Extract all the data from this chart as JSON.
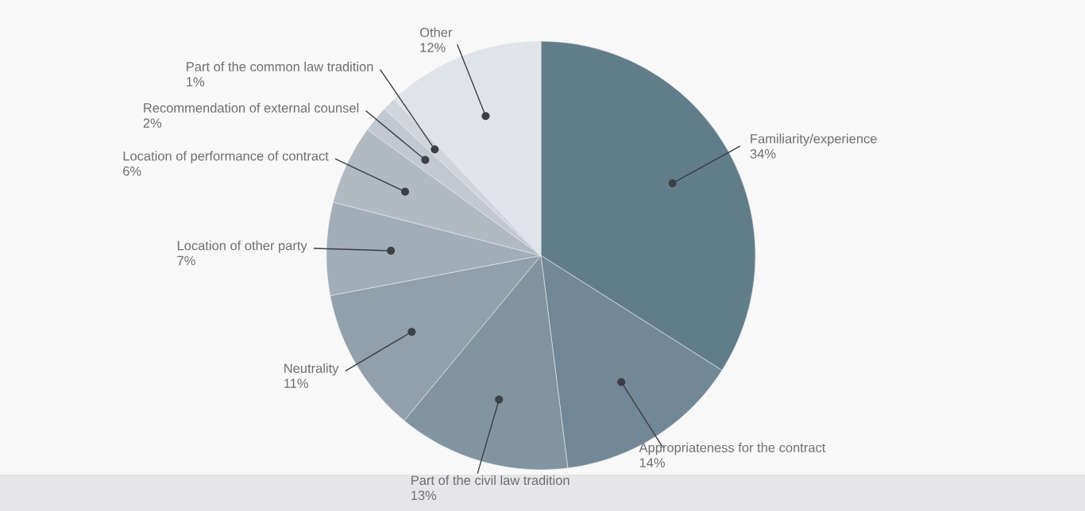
{
  "chart_data": {
    "type": "pie",
    "categories": [
      "Familiarity/experience",
      "Appropriateness for the contract",
      "Part of the civil law tradition",
      "Neutrality",
      "Location of other party",
      "Location of performance of contract",
      "Recommendation of external counsel",
      "Part of the common law tradition",
      "Other"
    ],
    "values": [
      34,
      14,
      13,
      11,
      7,
      6,
      2,
      1,
      12
    ],
    "value_labels": [
      "34%",
      "14%",
      "13%",
      "11%",
      "7%",
      "6%",
      "2%",
      "1%",
      "12%"
    ],
    "colors": [
      "#627d8a",
      "#728896",
      "#8294a0",
      "#91a0ab",
      "#a1aeb7",
      "#b1b9c3",
      "#c2c8d0",
      "#d1d5db",
      "#e0e3e8"
    ]
  }
}
